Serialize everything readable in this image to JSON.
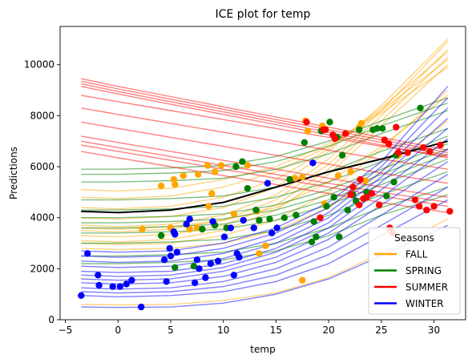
{
  "chart_data": {
    "type": "line",
    "title": "ICE plot for temp",
    "xlabel": "temp",
    "ylabel": "Predictions",
    "xlim": [
      -5.5,
      33
    ],
    "ylim": [
      0,
      11500
    ],
    "xticks": [
      -5,
      0,
      5,
      10,
      15,
      20,
      25,
      30
    ],
    "yticks": [
      0,
      2000,
      4000,
      6000,
      8000,
      10000
    ],
    "grid": false,
    "legend": {
      "title": "Seasons",
      "placement": "lower-right",
      "entries": [
        "FALL",
        "SPRING",
        "SUMMER",
        "WINTER"
      ]
    },
    "colors": {
      "FALL": "#ffa500",
      "SPRING": "#008000",
      "SUMMER": "#ff0000",
      "WINTER": "#0000ff",
      "average": "#000000"
    },
    "x_grid": [
      -3.5,
      0,
      5,
      10,
      15,
      20,
      25,
      31.3
    ],
    "average_curve": {
      "x": [
        -3.5,
        0,
        5,
        10,
        15,
        20,
        25,
        31.3
      ],
      "y": [
        4250,
        4200,
        4300,
        4600,
        5200,
        5800,
        6300,
        7000
      ]
    },
    "series": [
      {
        "name": "FALL",
        "ice_curves": [
          [
            3100,
            3050,
            3150,
            3500,
            4300,
            5700,
            7600,
            10000
          ],
          [
            3300,
            3250,
            3350,
            3700,
            4500,
            5900,
            7800,
            10300
          ],
          [
            3500,
            3450,
            3550,
            3900,
            4700,
            6100,
            8000,
            10600
          ],
          [
            3700,
            3650,
            3750,
            4100,
            4900,
            6300,
            8200,
            10900
          ],
          [
            4000,
            3950,
            4050,
            4400,
            5200,
            6600,
            8400,
            11000
          ],
          [
            4400,
            4350,
            4450,
            4800,
            5500,
            6700,
            8300,
            10500
          ],
          [
            4800,
            4750,
            4850,
            5200,
            5800,
            6800,
            8200,
            10200
          ],
          [
            5100,
            5050,
            5150,
            5500,
            6000,
            6900,
            8100,
            9900
          ],
          [
            3000,
            2950,
            3000,
            3300,
            3900,
            5000,
            6700,
            9000
          ],
          [
            3600,
            3550,
            3650,
            3900,
            4400,
            5400,
            6800,
            8800
          ],
          [
            2800,
            2750,
            2800,
            3000,
            3500,
            4400,
            5800,
            7800
          ],
          [
            600,
            580,
            600,
            750,
            1050,
            1650,
            2600,
            3950
          ]
        ],
        "points": [
          [
            2.3,
            3550
          ],
          [
            4.1,
            5250
          ],
          [
            5.0,
            3600
          ],
          [
            5.3,
            5500
          ],
          [
            5.4,
            5300
          ],
          [
            6.2,
            5650
          ],
          [
            6.8,
            3550
          ],
          [
            7.5,
            3600
          ],
          [
            7.6,
            5700
          ],
          [
            8.5,
            6050
          ],
          [
            8.6,
            4450
          ],
          [
            8.9,
            4950
          ],
          [
            9.2,
            5800
          ],
          [
            9.8,
            6050
          ],
          [
            11.0,
            4150
          ],
          [
            12.3,
            6050
          ],
          [
            13.2,
            4250
          ],
          [
            13.4,
            2600
          ],
          [
            14.0,
            2900
          ],
          [
            16.8,
            5550
          ],
          [
            17.5,
            5600
          ],
          [
            17.5,
            1550
          ],
          [
            17.8,
            7800
          ],
          [
            18.0,
            7400
          ],
          [
            19.4,
            7600
          ],
          [
            19.6,
            4550
          ],
          [
            20.9,
            5650
          ],
          [
            22.1,
            5800
          ],
          [
            22.9,
            7550
          ],
          [
            23.1,
            7700
          ],
          [
            23.5,
            5450
          ],
          [
            25.8,
            3500
          ],
          [
            26.6,
            6450
          ]
        ]
      },
      {
        "name": "SPRING",
        "ice_curves": [
          [
            5900,
            5900,
            5950,
            6050,
            6400,
            7000,
            7800,
            8700
          ],
          [
            5700,
            5700,
            5750,
            5850,
            6200,
            6800,
            7600,
            8500
          ],
          [
            5400,
            5400,
            5450,
            5550,
            5900,
            6500,
            7300,
            8200
          ],
          [
            4700,
            4700,
            4750,
            4850,
            5200,
            5800,
            6600,
            7500
          ],
          [
            4300,
            4300,
            4350,
            4450,
            4800,
            5400,
            6200,
            7200
          ],
          [
            4000,
            4000,
            4050,
            4150,
            4500,
            5100,
            5900,
            6900
          ],
          [
            3800,
            3800,
            3850,
            3950,
            4300,
            4900,
            5700,
            6700
          ],
          [
            3600,
            3600,
            3650,
            3750,
            4100,
            4700,
            5500,
            6500
          ],
          [
            3400,
            3400,
            3450,
            3550,
            3900,
            4500,
            5300,
            6300
          ],
          [
            3000,
            3000,
            3050,
            3150,
            3500,
            4100,
            4900,
            5800
          ],
          [
            2500,
            2500,
            2550,
            2650,
            3000,
            3600,
            4400,
            5200
          ],
          [
            2200,
            2200,
            2250,
            2350,
            2700,
            3300,
            4100,
            4900
          ]
        ],
        "points": [
          [
            4.1,
            3300
          ],
          [
            5.4,
            2050
          ],
          [
            7.2,
            2100
          ],
          [
            8.0,
            3550
          ],
          [
            9.2,
            3700
          ],
          [
            10.3,
            3600
          ],
          [
            11.2,
            6000
          ],
          [
            11.8,
            6200
          ],
          [
            12.3,
            5150
          ],
          [
            13.1,
            4300
          ],
          [
            13.4,
            3900
          ],
          [
            14.4,
            3950
          ],
          [
            15.8,
            4000
          ],
          [
            16.3,
            5500
          ],
          [
            16.9,
            4100
          ],
          [
            17.7,
            6950
          ],
          [
            18.4,
            3050
          ],
          [
            18.6,
            3850
          ],
          [
            18.8,
            3250
          ],
          [
            19.3,
            7400
          ],
          [
            19.8,
            4450
          ],
          [
            20.1,
            7750
          ],
          [
            20.5,
            4800
          ],
          [
            20.8,
            7150
          ],
          [
            21.0,
            3250
          ],
          [
            21.3,
            6450
          ],
          [
            21.8,
            4300
          ],
          [
            22.3,
            4900
          ],
          [
            22.6,
            4650
          ],
          [
            22.9,
            7450
          ],
          [
            23.6,
            5000
          ],
          [
            24.2,
            7450
          ],
          [
            24.6,
            7500
          ],
          [
            25.1,
            7500
          ],
          [
            25.5,
            4850
          ],
          [
            26.2,
            5400
          ],
          [
            26.4,
            6450
          ],
          [
            28.7,
            8300
          ]
        ]
      },
      {
        "name": "SUMMER",
        "ice_curves": [
          [
            9450,
            9150,
            8750,
            8350,
            7950,
            7550,
            7150,
            6650
          ],
          [
            9350,
            9050,
            8650,
            8250,
            7850,
            7450,
            7050,
            6550
          ],
          [
            9250,
            8950,
            8550,
            8150,
            7750,
            7350,
            6950,
            6450
          ],
          [
            9150,
            8850,
            8450,
            8050,
            7650,
            7250,
            6850,
            6350
          ],
          [
            8800,
            8550,
            8200,
            7850,
            7500,
            7150,
            6800,
            6400
          ],
          [
            8300,
            8050,
            7700,
            7350,
            7000,
            6650,
            6300,
            5900
          ],
          [
            7750,
            7500,
            7150,
            6800,
            6450,
            6100,
            5750,
            5350
          ],
          [
            7200,
            6950,
            6600,
            6250,
            5900,
            5550,
            5200,
            4800
          ],
          [
            7000,
            6750,
            6400,
            6050,
            5700,
            5350,
            5000,
            4600
          ],
          [
            6850,
            6600,
            6250,
            5900,
            5550,
            5200,
            4850,
            4450
          ],
          [
            6600,
            6350,
            6000,
            5650,
            5300,
            4950,
            4600,
            4200
          ]
        ],
        "points": [
          [
            17.9,
            7750
          ],
          [
            19.2,
            4000
          ],
          [
            19.5,
            7450
          ],
          [
            19.7,
            7450
          ],
          [
            20.4,
            7250
          ],
          [
            20.6,
            7100
          ],
          [
            21.6,
            7300
          ],
          [
            22.1,
            4900
          ],
          [
            22.3,
            5200
          ],
          [
            22.9,
            4500
          ],
          [
            23.0,
            5500
          ],
          [
            23.3,
            4750
          ],
          [
            23.6,
            4800
          ],
          [
            24.1,
            4950
          ],
          [
            24.8,
            4500
          ],
          [
            25.3,
            7050
          ],
          [
            25.7,
            6900
          ],
          [
            25.8,
            3600
          ],
          [
            26.1,
            3400
          ],
          [
            26.4,
            7550
          ],
          [
            26.6,
            6550
          ],
          [
            27.5,
            6550
          ],
          [
            28.2,
            4700
          ],
          [
            28.6,
            4450
          ],
          [
            29.0,
            6750
          ],
          [
            29.3,
            4300
          ],
          [
            29.6,
            6600
          ],
          [
            30.0,
            4450
          ],
          [
            30.6,
            6850
          ],
          [
            31.5,
            4250
          ]
        ]
      },
      {
        "name": "WINTER",
        "ice_curves": [
          [
            2700,
            2650,
            2700,
            3000,
            3600,
            4600,
            6200,
            9150
          ],
          [
            2500,
            2450,
            2500,
            2800,
            3400,
            4400,
            6000,
            8700
          ],
          [
            2300,
            2250,
            2300,
            2600,
            3200,
            4200,
            5800,
            8300
          ],
          [
            2100,
            2050,
            2100,
            2400,
            3000,
            4000,
            5600,
            7900
          ],
          [
            1900,
            1850,
            1900,
            2200,
            2800,
            3800,
            5400,
            7500
          ],
          [
            1750,
            1700,
            1750,
            2050,
            2650,
            3600,
            5100,
            7100
          ],
          [
            1600,
            1550,
            1600,
            1900,
            2450,
            3400,
            4800,
            6700
          ],
          [
            1450,
            1400,
            1450,
            1700,
            2250,
            3150,
            4500,
            6200
          ],
          [
            1250,
            1200,
            1250,
            1500,
            2000,
            2850,
            4100,
            5700
          ],
          [
            1100,
            1050,
            1100,
            1300,
            1750,
            2550,
            3700,
            5200
          ],
          [
            950,
            900,
            950,
            1100,
            1500,
            2200,
            3300,
            4700
          ],
          [
            500,
            480,
            500,
            650,
            1000,
            1600,
            2500,
            3700
          ]
        ],
        "points": [
          [
            -3.5,
            950
          ],
          [
            -2.9,
            2600
          ],
          [
            -1.9,
            1750
          ],
          [
            -1.8,
            1350
          ],
          [
            -0.5,
            1300
          ],
          [
            0.2,
            1300
          ],
          [
            0.8,
            1400
          ],
          [
            1.3,
            1550
          ],
          [
            2.2,
            500
          ],
          [
            4.4,
            2350
          ],
          [
            4.6,
            1500
          ],
          [
            4.9,
            2800
          ],
          [
            5.0,
            2500
          ],
          [
            5.3,
            3450
          ],
          [
            5.4,
            3350
          ],
          [
            5.6,
            2650
          ],
          [
            6.5,
            3750
          ],
          [
            6.8,
            3950
          ],
          [
            7.3,
            1450
          ],
          [
            7.5,
            2350
          ],
          [
            7.7,
            2000
          ],
          [
            8.3,
            1650
          ],
          [
            8.8,
            2200
          ],
          [
            9.0,
            3850
          ],
          [
            9.5,
            2300
          ],
          [
            10.1,
            3250
          ],
          [
            10.7,
            3600
          ],
          [
            11.0,
            1750
          ],
          [
            11.3,
            2600
          ],
          [
            11.5,
            2450
          ],
          [
            11.9,
            3900
          ],
          [
            12.9,
            3600
          ],
          [
            14.2,
            5350
          ],
          [
            14.6,
            3400
          ],
          [
            15.1,
            3600
          ],
          [
            18.5,
            6150
          ]
        ]
      }
    ]
  }
}
